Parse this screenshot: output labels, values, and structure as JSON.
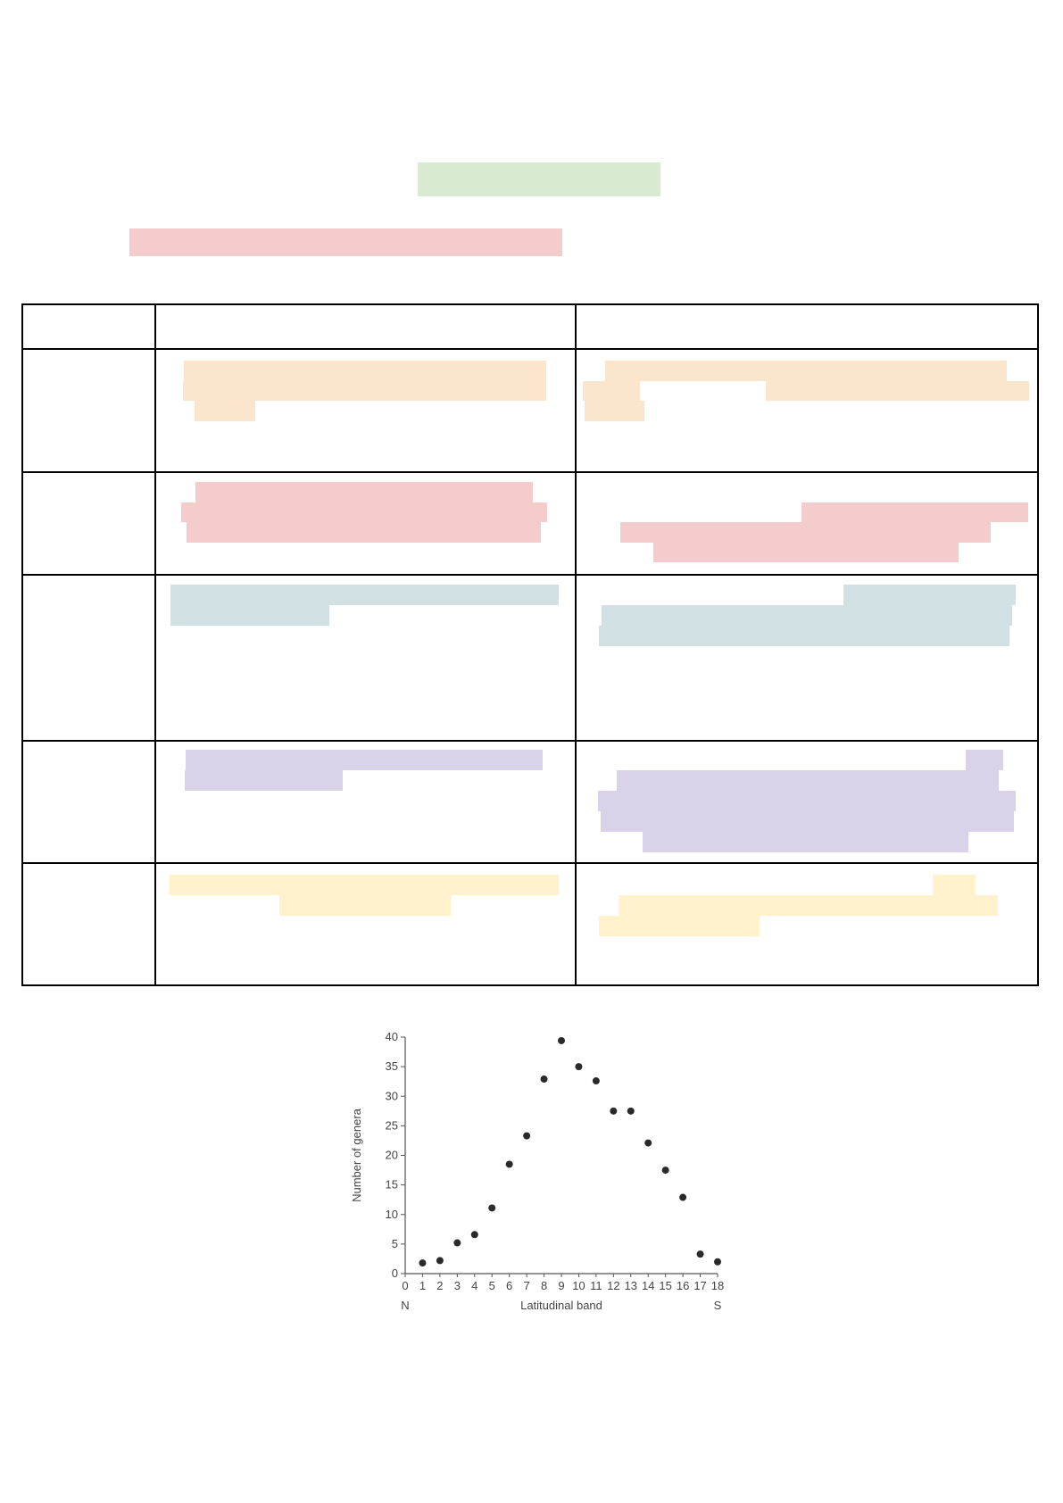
{
  "page": {
    "title_highlight_color": "#d9ead3",
    "subtitle_highlight_color": "#f4cccc"
  },
  "table": {
    "rows": 5,
    "columns": 3,
    "row_highlight_colors": [
      "#fce5cd",
      "#f4cccc",
      "#d0e0e3",
      "#d9d2e9",
      "#fff2cc"
    ]
  },
  "chart_data": {
    "type": "scatter",
    "title": "",
    "xlabel": "Latitudinal band",
    "ylabel": "Number of genera",
    "x_left_label": "N",
    "x_right_label": "S",
    "xlim": [
      0,
      18
    ],
    "ylim": [
      0,
      40
    ],
    "xticks": [
      "0",
      "1",
      "2",
      "3",
      "4",
      "5",
      "6",
      "7",
      "8",
      "9",
      "10",
      "11",
      "12",
      "13",
      "14",
      "15",
      "16",
      "17",
      "18"
    ],
    "yticks": [
      "0",
      "5",
      "10",
      "15",
      "20",
      "25",
      "30",
      "35",
      "40"
    ],
    "x": [
      1,
      2,
      3,
      4,
      5,
      6,
      7,
      8,
      9,
      10,
      11,
      12,
      13,
      14,
      15,
      16,
      17,
      18
    ],
    "y": [
      1.8,
      2.2,
      5.2,
      6.6,
      11.1,
      18.5,
      23.3,
      32.9,
      39.4,
      35.0,
      32.6,
      27.5,
      27.5,
      22.1,
      17.5,
      12.9,
      3.3,
      2.0
    ],
    "grid": false,
    "marker_color": "#2a2a2a"
  }
}
